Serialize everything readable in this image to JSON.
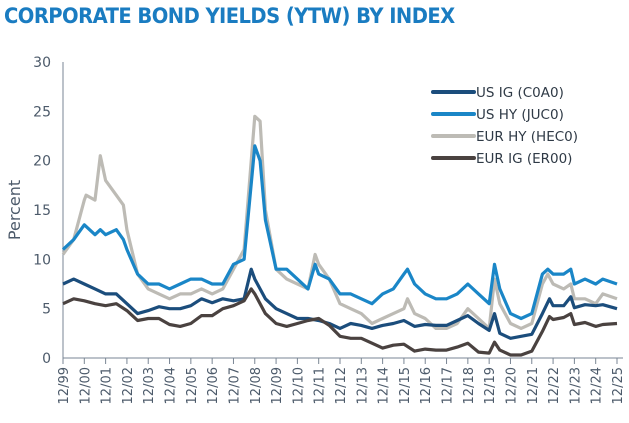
{
  "chart_data": {
    "type": "line",
    "title": "CORPORATE BOND YIELDS (YTW) BY INDEX",
    "ylabel": "Percent",
    "xlabel": "",
    "ylim": [
      0,
      30
    ],
    "yticks": [
      0,
      5,
      10,
      15,
      20,
      25,
      30
    ],
    "xticks": [
      "12/99",
      "12/00",
      "12/01",
      "12/02",
      "12/03",
      "12/04",
      "12/05",
      "12/06",
      "12/07",
      "12/08",
      "12/09",
      "12/10",
      "12/11",
      "12/12",
      "12/13",
      "12/14",
      "12/15",
      "12/16",
      "12/17",
      "12/18",
      "12/19",
      "12/20",
      "12/21",
      "12/22",
      "12/23",
      "12/24",
      "12/25"
    ],
    "xrange": [
      "1999-12",
      "2025-12"
    ],
    "grid": false,
    "legend_position": "top-right",
    "series": [
      {
        "name": "US IG (C0A0)",
        "color": "#1b4d7c",
        "points": [
          [
            "1999-12",
            7.5
          ],
          [
            "2000-06",
            8
          ],
          [
            "2000-12",
            7.5
          ],
          [
            "2001-06",
            7
          ],
          [
            "2001-12",
            6.5
          ],
          [
            "2002-06",
            6.5
          ],
          [
            "2002-12",
            5.5
          ],
          [
            "2003-06",
            4.5
          ],
          [
            "2003-12",
            4.8
          ],
          [
            "2004-06",
            5.2
          ],
          [
            "2004-12",
            5
          ],
          [
            "2005-06",
            5
          ],
          [
            "2005-12",
            5.3
          ],
          [
            "2006-06",
            6
          ],
          [
            "2006-12",
            5.6
          ],
          [
            "2007-06",
            6
          ],
          [
            "2007-12",
            5.8
          ],
          [
            "2008-06",
            6
          ],
          [
            "2008-10",
            9
          ],
          [
            "2008-12",
            8
          ],
          [
            "2009-06",
            6
          ],
          [
            "2009-12",
            5
          ],
          [
            "2010-06",
            4.5
          ],
          [
            "2010-12",
            4
          ],
          [
            "2011-06",
            4
          ],
          [
            "2011-12",
            3.8
          ],
          [
            "2012-06",
            3.5
          ],
          [
            "2012-12",
            3
          ],
          [
            "2013-06",
            3.5
          ],
          [
            "2013-12",
            3.3
          ],
          [
            "2014-06",
            3
          ],
          [
            "2014-12",
            3.3
          ],
          [
            "2015-06",
            3.5
          ],
          [
            "2015-12",
            3.8
          ],
          [
            "2016-06",
            3.2
          ],
          [
            "2016-12",
            3.4
          ],
          [
            "2017-06",
            3.3
          ],
          [
            "2017-12",
            3.3
          ],
          [
            "2018-06",
            3.8
          ],
          [
            "2018-12",
            4.3
          ],
          [
            "2019-06",
            3.5
          ],
          [
            "2019-12",
            2.8
          ],
          [
            "2020-03",
            4.5
          ],
          [
            "2020-06",
            2.5
          ],
          [
            "2020-12",
            2
          ],
          [
            "2021-06",
            2.2
          ],
          [
            "2021-12",
            2.4
          ],
          [
            "2022-06",
            4.5
          ],
          [
            "2022-10",
            6
          ],
          [
            "2022-12",
            5.3
          ],
          [
            "2023-06",
            5.3
          ],
          [
            "2023-10",
            6.2
          ],
          [
            "2023-12",
            5.1
          ],
          [
            "2024-06",
            5.4
          ],
          [
            "2024-12",
            5.3
          ],
          [
            "2025-04",
            5.4
          ],
          [
            "2025-12",
            5
          ]
        ]
      },
      {
        "name": "US HY (JUC0)",
        "color": "#1a86c7",
        "points": [
          [
            "1999-12",
            11
          ],
          [
            "2000-06",
            12
          ],
          [
            "2000-12",
            13.5
          ],
          [
            "2001-06",
            12.5
          ],
          [
            "2001-09",
            13
          ],
          [
            "2001-12",
            12.5
          ],
          [
            "2002-06",
            13
          ],
          [
            "2002-10",
            12
          ],
          [
            "2002-12",
            11
          ],
          [
            "2003-06",
            8.5
          ],
          [
            "2003-12",
            7.5
          ],
          [
            "2004-06",
            7.5
          ],
          [
            "2004-12",
            7
          ],
          [
            "2005-06",
            7.5
          ],
          [
            "2005-12",
            8
          ],
          [
            "2006-06",
            8
          ],
          [
            "2006-12",
            7.5
          ],
          [
            "2007-06",
            7.5
          ],
          [
            "2007-12",
            9.5
          ],
          [
            "2008-06",
            10
          ],
          [
            "2008-12",
            21.5
          ],
          [
            "2009-03",
            20
          ],
          [
            "2009-06",
            14
          ],
          [
            "2009-12",
            9
          ],
          [
            "2010-06",
            9
          ],
          [
            "2010-12",
            8
          ],
          [
            "2011-06",
            7
          ],
          [
            "2011-10",
            9.5
          ],
          [
            "2011-12",
            8.5
          ],
          [
            "2012-06",
            8
          ],
          [
            "2012-12",
            6.5
          ],
          [
            "2013-06",
            6.5
          ],
          [
            "2013-12",
            6
          ],
          [
            "2014-06",
            5.5
          ],
          [
            "2014-12",
            6.5
          ],
          [
            "2015-06",
            7
          ],
          [
            "2015-12",
            8.5
          ],
          [
            "2016-02",
            9
          ],
          [
            "2016-06",
            7.5
          ],
          [
            "2016-12",
            6.5
          ],
          [
            "2017-06",
            6
          ],
          [
            "2017-12",
            6
          ],
          [
            "2018-06",
            6.5
          ],
          [
            "2018-12",
            7.5
          ],
          [
            "2019-06",
            6.5
          ],
          [
            "2019-12",
            5.5
          ],
          [
            "2020-03",
            9.5
          ],
          [
            "2020-06",
            7
          ],
          [
            "2020-12",
            4.5
          ],
          [
            "2021-06",
            4
          ],
          [
            "2021-12",
            4.5
          ],
          [
            "2022-06",
            8.5
          ],
          [
            "2022-09",
            9
          ],
          [
            "2022-12",
            8.5
          ],
          [
            "2023-06",
            8.5
          ],
          [
            "2023-10",
            9
          ],
          [
            "2023-12",
            7.5
          ],
          [
            "2024-06",
            8
          ],
          [
            "2024-12",
            7.5
          ],
          [
            "2025-04",
            8
          ],
          [
            "2025-12",
            7.5
          ]
        ]
      },
      {
        "name": "EUR HY (HEC0)",
        "color": "#bdbbb5",
        "points": [
          [
            "1999-12",
            10.5
          ],
          [
            "2000-06",
            12
          ],
          [
            "2000-12",
            16
          ],
          [
            "2001-01",
            16.5
          ],
          [
            "2001-06",
            16
          ],
          [
            "2001-09",
            20.5
          ],
          [
            "2001-12",
            18
          ],
          [
            "2002-06",
            16.5
          ],
          [
            "2002-10",
            15.5
          ],
          [
            "2002-12",
            13
          ],
          [
            "2003-06",
            8.5
          ],
          [
            "2003-12",
            7
          ],
          [
            "2004-06",
            6.5
          ],
          [
            "2004-12",
            6
          ],
          [
            "2005-06",
            6.5
          ],
          [
            "2005-12",
            6.5
          ],
          [
            "2006-06",
            7
          ],
          [
            "2006-12",
            6.5
          ],
          [
            "2007-06",
            7
          ],
          [
            "2007-12",
            9
          ],
          [
            "2008-06",
            11
          ],
          [
            "2008-12",
            24.5
          ],
          [
            "2009-03",
            24
          ],
          [
            "2009-06",
            15
          ],
          [
            "2009-12",
            9
          ],
          [
            "2010-06",
            8
          ],
          [
            "2010-12",
            7.5
          ],
          [
            "2011-06",
            7
          ],
          [
            "2011-10",
            10.5
          ],
          [
            "2011-12",
            9.5
          ],
          [
            "2012-06",
            8
          ],
          [
            "2012-12",
            5.5
          ],
          [
            "2013-06",
            5
          ],
          [
            "2013-12",
            4.5
          ],
          [
            "2014-06",
            3.5
          ],
          [
            "2014-12",
            4
          ],
          [
            "2015-06",
            4.5
          ],
          [
            "2015-12",
            5
          ],
          [
            "2016-02",
            6
          ],
          [
            "2016-06",
            4.5
          ],
          [
            "2016-12",
            4
          ],
          [
            "2017-06",
            3
          ],
          [
            "2017-12",
            3
          ],
          [
            "2018-06",
            3.5
          ],
          [
            "2018-12",
            5
          ],
          [
            "2019-06",
            4
          ],
          [
            "2019-12",
            3
          ],
          [
            "2020-03",
            8
          ],
          [
            "2020-06",
            5.5
          ],
          [
            "2020-12",
            3.5
          ],
          [
            "2021-06",
            3
          ],
          [
            "2021-12",
            3.5
          ],
          [
            "2022-06",
            7.5
          ],
          [
            "2022-09",
            8.5
          ],
          [
            "2022-12",
            7.5
          ],
          [
            "2023-06",
            7
          ],
          [
            "2023-10",
            7.5
          ],
          [
            "2023-12",
            6
          ],
          [
            "2024-06",
            6
          ],
          [
            "2024-12",
            5.5
          ],
          [
            "2025-04",
            6.5
          ],
          [
            "2025-12",
            6
          ]
        ]
      },
      {
        "name": "EUR IG (ER00)",
        "color": "#4a4240",
        "points": [
          [
            "1999-12",
            5.5
          ],
          [
            "2000-06",
            6
          ],
          [
            "2000-12",
            5.8
          ],
          [
            "2001-06",
            5.5
          ],
          [
            "2001-12",
            5.3
          ],
          [
            "2002-06",
            5.5
          ],
          [
            "2002-12",
            4.8
          ],
          [
            "2003-06",
            3.8
          ],
          [
            "2003-12",
            4
          ],
          [
            "2004-06",
            4
          ],
          [
            "2004-12",
            3.4
          ],
          [
            "2005-06",
            3.2
          ],
          [
            "2005-12",
            3.5
          ],
          [
            "2006-06",
            4.3
          ],
          [
            "2006-12",
            4.3
          ],
          [
            "2007-06",
            5
          ],
          [
            "2007-12",
            5.3
          ],
          [
            "2008-06",
            5.8
          ],
          [
            "2008-10",
            7
          ],
          [
            "2008-12",
            6.5
          ],
          [
            "2009-06",
            4.5
          ],
          [
            "2009-12",
            3.5
          ],
          [
            "2010-06",
            3.2
          ],
          [
            "2010-12",
            3.5
          ],
          [
            "2011-06",
            3.8
          ],
          [
            "2011-12",
            4
          ],
          [
            "2012-06",
            3.3
          ],
          [
            "2012-12",
            2.2
          ],
          [
            "2013-06",
            2
          ],
          [
            "2013-12",
            2
          ],
          [
            "2014-06",
            1.5
          ],
          [
            "2014-12",
            1
          ],
          [
            "2015-06",
            1.3
          ],
          [
            "2015-12",
            1.4
          ],
          [
            "2016-06",
            0.7
          ],
          [
            "2016-12",
            0.9
          ],
          [
            "2017-06",
            0.8
          ],
          [
            "2017-12",
            0.8
          ],
          [
            "2018-06",
            1.1
          ],
          [
            "2018-12",
            1.5
          ],
          [
            "2019-06",
            0.6
          ],
          [
            "2019-12",
            0.5
          ],
          [
            "2020-03",
            1.6
          ],
          [
            "2020-06",
            0.8
          ],
          [
            "2020-12",
            0.3
          ],
          [
            "2021-06",
            0.3
          ],
          [
            "2021-12",
            0.7
          ],
          [
            "2022-06",
            2.7
          ],
          [
            "2022-10",
            4.2
          ],
          [
            "2022-12",
            3.9
          ],
          [
            "2023-06",
            4.1
          ],
          [
            "2023-10",
            4.5
          ],
          [
            "2023-12",
            3.4
          ],
          [
            "2024-06",
            3.6
          ],
          [
            "2024-12",
            3.2
          ],
          [
            "2025-04",
            3.4
          ],
          [
            "2025-12",
            3.5
          ]
        ]
      }
    ]
  }
}
